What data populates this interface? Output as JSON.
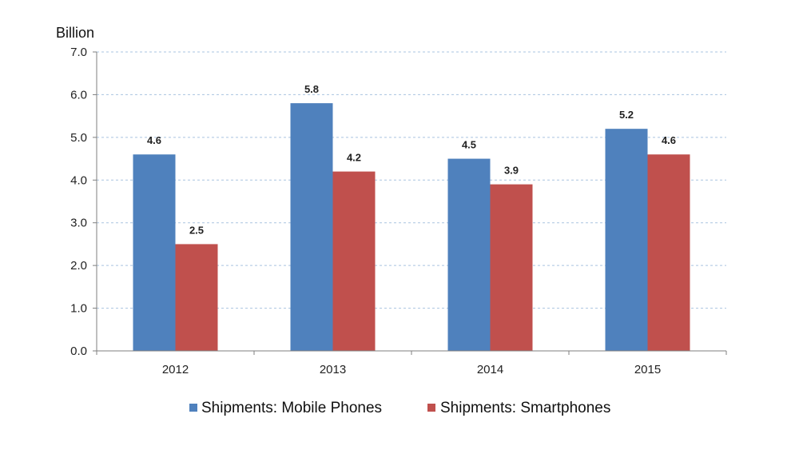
{
  "chart_data": {
    "type": "bar",
    "categories": [
      "2012",
      "2013",
      "2014",
      "2015"
    ],
    "series": [
      {
        "name": "Shipments: Mobile Phones",
        "values": [
          4.6,
          5.8,
          4.5,
          5.2
        ],
        "color": "#4f81bd"
      },
      {
        "name": "Shipments: Smartphones",
        "values": [
          2.5,
          4.2,
          3.9,
          4.6
        ],
        "color": "#c0504d"
      }
    ],
    "title": "",
    "ylabel": "Billion",
    "ylim": [
      0,
      7
    ],
    "yticks": [
      "0.0",
      "1.0",
      "2.0",
      "3.0",
      "4.0",
      "5.0",
      "6.0",
      "7.0"
    ],
    "data_labels": [
      [
        "4.6",
        "5.8",
        "4.5",
        "5.2"
      ],
      [
        "2.5",
        "4.2",
        "3.9",
        "4.6"
      ]
    ],
    "grid": true,
    "legend_position": "bottom"
  }
}
